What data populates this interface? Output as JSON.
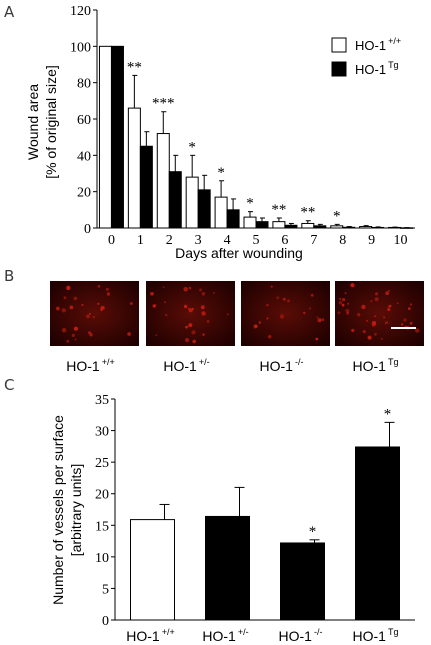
{
  "panels": {
    "A": {
      "letter": "A"
    },
    "B": {
      "letter": "B"
    },
    "C": {
      "letter": "C"
    }
  },
  "chart_data": [
    {
      "panel": "A",
      "type": "bar",
      "title": "",
      "xlabel": "Days after wounding",
      "ylabel_line1": "Wound area",
      "ylabel_line2": "[% of original size]",
      "ylim": [
        0,
        120
      ],
      "yticks": [
        0,
        20,
        40,
        60,
        80,
        100,
        120
      ],
      "categories": [
        "0",
        "1",
        "2",
        "3",
        "4",
        "5",
        "6",
        "7",
        "8",
        "9",
        "10"
      ],
      "series": [
        {
          "name_base": "HO-1",
          "name_sup": "+/+",
          "color": "#ffffff",
          "values": [
            100,
            66,
            52,
            28,
            17,
            6,
            3.5,
            2.5,
            1.2,
            0.8,
            0.3
          ],
          "errors": [
            0,
            18,
            12,
            12,
            9,
            3,
            2,
            1.5,
            0.8,
            0.5,
            0.2
          ]
        },
        {
          "name_base": "HO-1",
          "name_sup": "Tg",
          "color": "#000000",
          "values": [
            100,
            45,
            31,
            21,
            10,
            3.5,
            1.5,
            1.2,
            0.4,
            0.3,
            0.1
          ],
          "errors": [
            0,
            8,
            9,
            8,
            6,
            2,
            1,
            0.8,
            0.4,
            0.3,
            0.1
          ]
        }
      ],
      "significance": [
        {
          "category": "1",
          "text": "**"
        },
        {
          "category": "2",
          "text": "***"
        },
        {
          "category": "3",
          "text": "*"
        },
        {
          "category": "4",
          "text": "*"
        },
        {
          "category": "5",
          "text": "*"
        },
        {
          "category": "6",
          "text": "**"
        },
        {
          "category": "7",
          "text": "**"
        },
        {
          "category": "8",
          "text": "*"
        }
      ],
      "legend_position": "top-right"
    },
    {
      "panel": "B",
      "type": "image-row",
      "images": [
        {
          "label_base": "HO-1",
          "label_sup": "+/+"
        },
        {
          "label_base": "HO-1",
          "label_sup": "+/-"
        },
        {
          "label_base": "HO-1",
          "label_sup": "-/-"
        },
        {
          "label_base": "HO-1",
          "label_sup": "Tg"
        }
      ],
      "tint_color": "#c81e10"
    },
    {
      "panel": "C",
      "type": "bar",
      "title": "",
      "xlabel": "",
      "ylabel_line1": "Number of vessels per surface",
      "ylabel_line2": "[arbitrary units]",
      "ylim": [
        0,
        35
      ],
      "yticks": [
        0,
        5,
        10,
        15,
        20,
        25,
        30,
        35
      ],
      "categories": [
        {
          "base": "HO-1",
          "sup": "+/+"
        },
        {
          "base": "HO-1",
          "sup": "+/-"
        },
        {
          "base": "HO-1",
          "sup": "-/-"
        },
        {
          "base": "HO-1",
          "sup": "Tg"
        }
      ],
      "values": [
        15.9,
        16.4,
        12.2,
        27.4
      ],
      "errors": [
        2.4,
        4.6,
        0.5,
        3.9
      ],
      "colors": [
        "#ffffff",
        "#000000",
        "#000000",
        "#000000"
      ],
      "significance": [
        "",
        "",
        "*",
        "*"
      ]
    }
  ]
}
